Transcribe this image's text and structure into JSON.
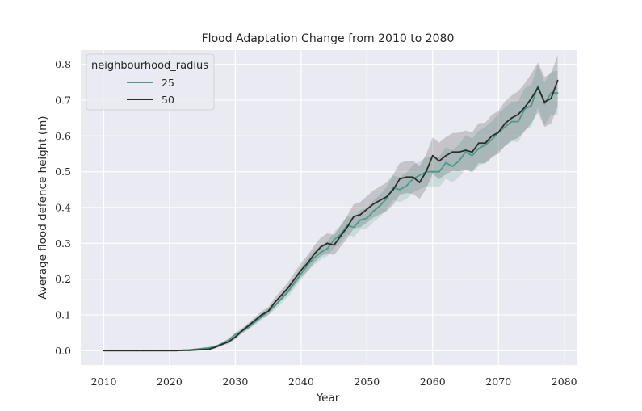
{
  "chart_data": {
    "type": "line",
    "title": "Flood Adaptation Change from 2010 to 2080",
    "xlabel": "Year",
    "ylabel": "Average flood defence height (m)",
    "xlim": [
      2006.5,
      2082
    ],
    "ylim": [
      -0.04,
      0.84
    ],
    "xticks": [
      2010,
      2020,
      2030,
      2040,
      2050,
      2060,
      2070,
      2080
    ],
    "yticks": [
      0.0,
      0.1,
      0.2,
      0.3,
      0.4,
      0.5,
      0.6,
      0.7,
      0.8
    ],
    "xtick_labels": [
      "2010",
      "2020",
      "2030",
      "2040",
      "2050",
      "2060",
      "2070",
      "2080"
    ],
    "ytick_labels": [
      "0.0",
      "0.1",
      "0.2",
      "0.3",
      "0.4",
      "0.5",
      "0.6",
      "0.7",
      "0.8"
    ],
    "grid": true,
    "legend": {
      "title": "neighbourhood_radius",
      "placement": "top-left"
    },
    "series": [
      {
        "name": "25",
        "color": "#4c9a8a",
        "x": [
          2010,
          2011,
          2012,
          2013,
          2014,
          2015,
          2016,
          2017,
          2018,
          2019,
          2020,
          2021,
          2022,
          2023,
          2024,
          2025,
          2026,
          2027,
          2028,
          2029,
          2030,
          2031,
          2032,
          2033,
          2034,
          2035,
          2036,
          2037,
          2038,
          2039,
          2040,
          2041,
          2042,
          2043,
          2044,
          2045,
          2046,
          2047,
          2048,
          2049,
          2050,
          2051,
          2052,
          2053,
          2054,
          2055,
          2056,
          2057,
          2058,
          2059,
          2060,
          2061,
          2062,
          2063,
          2064,
          2065,
          2066,
          2067,
          2068,
          2069,
          2070,
          2071,
          2072,
          2073,
          2074,
          2075,
          2076,
          2077,
          2078,
          2079
        ],
        "values": [
          0.0,
          0.0,
          0.0,
          0.0,
          0.0,
          0.0,
          0.0,
          0.0,
          0.0,
          0.0,
          0.0,
          0.0,
          0.001,
          0.002,
          0.004,
          0.006,
          0.008,
          0.012,
          0.02,
          0.03,
          0.045,
          0.055,
          0.065,
          0.08,
          0.095,
          0.11,
          0.125,
          0.145,
          0.165,
          0.19,
          0.215,
          0.24,
          0.26,
          0.275,
          0.285,
          0.31,
          0.325,
          0.35,
          0.345,
          0.365,
          0.37,
          0.39,
          0.405,
          0.425,
          0.455,
          0.45,
          0.46,
          0.48,
          0.49,
          0.5,
          0.5,
          0.5,
          0.525,
          0.515,
          0.53,
          0.555,
          0.545,
          0.565,
          0.575,
          0.59,
          0.61,
          0.625,
          0.64,
          0.64,
          0.675,
          0.685,
          0.74,
          0.69,
          0.72,
          0.72
        ],
        "lower": [
          0.0,
          0.0,
          0.0,
          0.0,
          0.0,
          0.0,
          0.0,
          0.0,
          0.0,
          0.0,
          0.0,
          0.0,
          0.0,
          0.0,
          0.002,
          0.003,
          0.005,
          0.009,
          0.016,
          0.025,
          0.038,
          0.048,
          0.058,
          0.072,
          0.086,
          0.1,
          0.114,
          0.132,
          0.15,
          0.174,
          0.198,
          0.222,
          0.24,
          0.255,
          0.264,
          0.287,
          0.301,
          0.325,
          0.318,
          0.338,
          0.341,
          0.36,
          0.374,
          0.393,
          0.421,
          0.415,
          0.423,
          0.442,
          0.451,
          0.46,
          0.458,
          0.457,
          0.481,
          0.47,
          0.484,
          0.508,
          0.497,
          0.516,
          0.525,
          0.539,
          0.557,
          0.571,
          0.584,
          0.583,
          0.617,
          0.626,
          0.68,
          0.63,
          0.66,
          0.658
        ],
        "upper": [
          0.0,
          0.0,
          0.0,
          0.0,
          0.0,
          0.0,
          0.0,
          0.0,
          0.0,
          0.0,
          0.0,
          0.0,
          0.002,
          0.004,
          0.006,
          0.009,
          0.011,
          0.015,
          0.024,
          0.035,
          0.052,
          0.062,
          0.072,
          0.088,
          0.104,
          0.12,
          0.136,
          0.158,
          0.18,
          0.206,
          0.232,
          0.258,
          0.28,
          0.295,
          0.306,
          0.333,
          0.349,
          0.375,
          0.372,
          0.392,
          0.399,
          0.42,
          0.436,
          0.457,
          0.489,
          0.485,
          0.497,
          0.518,
          0.529,
          0.54,
          0.542,
          0.543,
          0.569,
          0.56,
          0.576,
          0.602,
          0.593,
          0.614,
          0.625,
          0.641,
          0.663,
          0.679,
          0.696,
          0.697,
          0.733,
          0.744,
          0.8,
          0.75,
          0.78,
          0.782
        ]
      },
      {
        "name": "50",
        "color": "#2b2b2b",
        "x": [
          2010,
          2011,
          2012,
          2013,
          2014,
          2015,
          2016,
          2017,
          2018,
          2019,
          2020,
          2021,
          2022,
          2023,
          2024,
          2025,
          2026,
          2027,
          2028,
          2029,
          2030,
          2031,
          2032,
          2033,
          2034,
          2035,
          2036,
          2037,
          2038,
          2039,
          2040,
          2041,
          2042,
          2043,
          2044,
          2045,
          2046,
          2047,
          2048,
          2049,
          2050,
          2051,
          2052,
          2053,
          2054,
          2055,
          2056,
          2057,
          2058,
          2059,
          2060,
          2061,
          2062,
          2063,
          2064,
          2065,
          2066,
          2067,
          2068,
          2069,
          2070,
          2071,
          2072,
          2073,
          2074,
          2075,
          2076,
          2077,
          2078,
          2079
        ],
        "values": [
          0.0,
          0.0,
          0.0,
          0.0,
          0.0,
          0.0,
          0.0,
          0.0,
          0.0,
          0.0,
          0.0,
          0.0,
          0.001,
          0.001,
          0.002,
          0.003,
          0.004,
          0.01,
          0.018,
          0.025,
          0.038,
          0.055,
          0.07,
          0.085,
          0.1,
          0.11,
          0.135,
          0.155,
          0.175,
          0.2,
          0.225,
          0.245,
          0.27,
          0.29,
          0.3,
          0.295,
          0.32,
          0.345,
          0.375,
          0.38,
          0.395,
          0.41,
          0.42,
          0.43,
          0.45,
          0.48,
          0.485,
          0.485,
          0.47,
          0.5,
          0.545,
          0.53,
          0.545,
          0.555,
          0.555,
          0.56,
          0.555,
          0.58,
          0.58,
          0.6,
          0.61,
          0.635,
          0.65,
          0.66,
          0.68,
          0.705,
          0.735,
          0.695,
          0.705,
          0.755
        ],
        "lower": [
          0.0,
          0.0,
          0.0,
          0.0,
          0.0,
          0.0,
          0.0,
          0.0,
          0.0,
          0.0,
          0.0,
          0.0,
          0.0,
          0.0,
          0.001,
          0.002,
          0.002,
          0.007,
          0.014,
          0.02,
          0.032,
          0.048,
          0.062,
          0.076,
          0.09,
          0.099,
          0.122,
          0.141,
          0.159,
          0.182,
          0.205,
          0.223,
          0.246,
          0.264,
          0.272,
          0.267,
          0.29,
          0.313,
          0.341,
          0.345,
          0.358,
          0.372,
          0.381,
          0.39,
          0.408,
          0.436,
          0.44,
          0.439,
          0.424,
          0.452,
          0.494,
          0.479,
          0.493,
          0.502,
          0.501,
          0.505,
          0.5,
          0.524,
          0.523,
          0.541,
          0.55,
          0.573,
          0.587,
          0.595,
          0.613,
          0.636,
          0.665,
          0.625,
          0.635,
          0.683
        ],
        "upper": [
          0.0,
          0.0,
          0.0,
          0.0,
          0.0,
          0.0,
          0.0,
          0.0,
          0.0,
          0.0,
          0.0,
          0.0,
          0.002,
          0.002,
          0.003,
          0.004,
          0.006,
          0.013,
          0.022,
          0.03,
          0.044,
          0.062,
          0.078,
          0.094,
          0.11,
          0.121,
          0.148,
          0.169,
          0.191,
          0.218,
          0.245,
          0.267,
          0.294,
          0.316,
          0.328,
          0.323,
          0.35,
          0.377,
          0.409,
          0.415,
          0.432,
          0.448,
          0.459,
          0.47,
          0.492,
          0.524,
          0.53,
          0.531,
          0.516,
          0.548,
          0.596,
          0.581,
          0.597,
          0.608,
          0.609,
          0.615,
          0.61,
          0.636,
          0.637,
          0.659,
          0.67,
          0.697,
          0.713,
          0.725,
          0.747,
          0.774,
          0.805,
          0.765,
          0.775,
          0.827
        ]
      }
    ]
  }
}
